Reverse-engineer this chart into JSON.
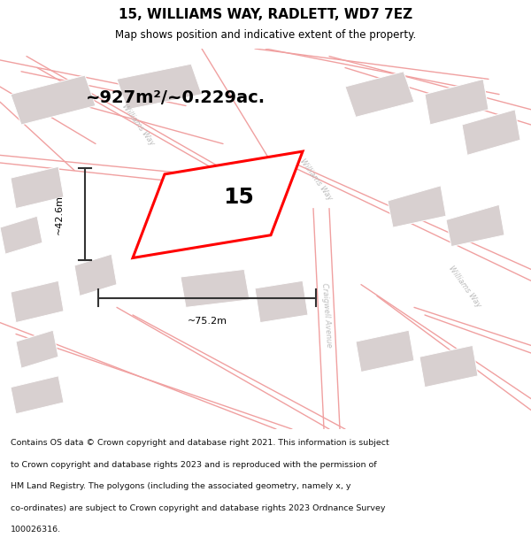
{
  "title": "15, WILLIAMS WAY, RADLETT, WD7 7EZ",
  "subtitle": "Map shows position and indicative extent of the property.",
  "area_text": "~927m²/~0.229ac.",
  "dim_width": "~75.2m",
  "dim_height": "~42.6m",
  "plot_number": "15",
  "footer_lines": [
    "Contains OS data © Crown copyright and database right 2021. This information is subject",
    "to Crown copyright and database rights 2023 and is reproduced with the permission of",
    "HM Land Registry. The polygons (including the associated geometry, namely x, y",
    "co-ordinates) are subject to Crown copyright and database rights 2023 Ordnance Survey",
    "100026316."
  ],
  "map_background": "#f7f2f2",
  "plot_color": "#ff0000",
  "road_color": "#f0a0a0",
  "building_color": "#d8d0d0",
  "dim_color": "#333333",
  "title_color": "#000000",
  "road_label_color": "#bbbbbb",
  "white": "#ffffff"
}
